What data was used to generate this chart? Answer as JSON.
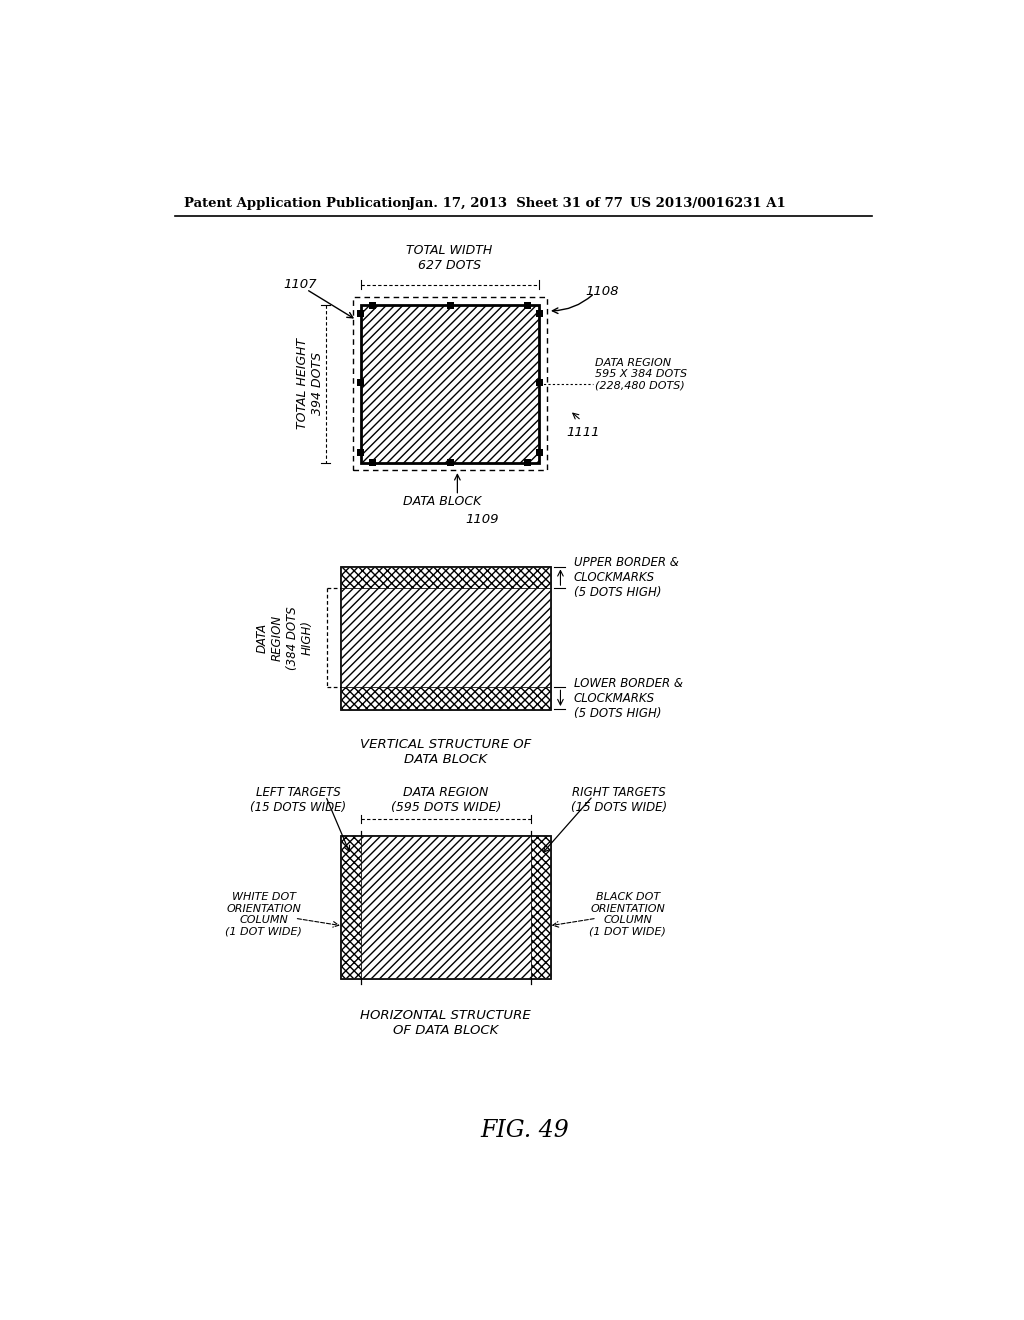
{
  "header_left": "Patent Application Publication",
  "header_mid": "Jan. 17, 2013  Sheet 31 of 77",
  "header_right": "US 2013/0016231 A1",
  "fig_label": "FIG. 49",
  "diagram1": {
    "label_1107": "1107",
    "label_1108": "1108",
    "label_1109": "1109",
    "label_1111": "1111",
    "total_width_text": "TOTAL WIDTH\n627 DOTS",
    "total_height_text": "TOTAL HEIGHT\n394 DOTS",
    "data_region_text": "DATA REGION\n595 X 384 DOTS\n(228,480 DOTS)",
    "data_block_text": "DATA BLOCK"
  },
  "diagram2": {
    "data_region_text": "DATA\nREGION\n(384 DOTS\nHIGH)",
    "upper_text": "UPPER BORDER &\nCLOCKMARKS\n(5 DOTS HIGH)",
    "lower_text": "LOWER BORDER &\nCLOCKMARKS\n(5 DOTS HIGH)",
    "caption": "VERTICAL STRUCTURE OF\nDATA BLOCK"
  },
  "diagram3": {
    "left_targets_text": "LEFT TARGETS\n(15 DOTS WIDE)",
    "data_region_text": "DATA REGION\n(595 DOTS WIDE)",
    "right_targets_text": "RIGHT TARGETS\n(15 DOTS WIDE)",
    "white_dot_text": "WHITE DOT\nORIENTATION\nCOLUMN\n(1 DOT WIDE)",
    "black_dot_text": "BLACK DOT\nORIENTATION\nCOLUMN\n(1 DOT WIDE)",
    "caption": "HORIZONTAL STRUCTURE\nOF DATA BLOCK"
  }
}
